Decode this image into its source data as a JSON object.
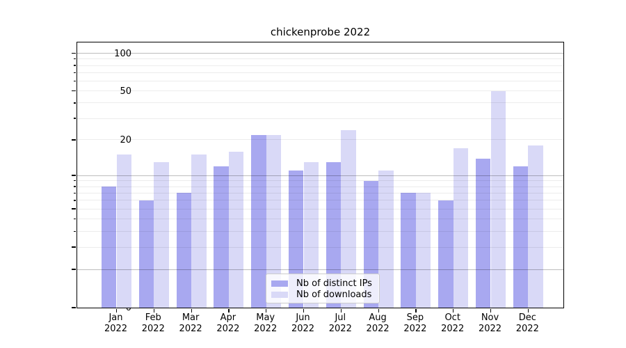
{
  "chart_data": {
    "type": "bar",
    "title": "chickenprobe 2022",
    "categories": [
      {
        "month": "Jan",
        "year": "2022"
      },
      {
        "month": "Feb",
        "year": "2022"
      },
      {
        "month": "Mar",
        "year": "2022"
      },
      {
        "month": "Apr",
        "year": "2022"
      },
      {
        "month": "May",
        "year": "2022"
      },
      {
        "month": "Jun",
        "year": "2022"
      },
      {
        "month": "Jul",
        "year": "2022"
      },
      {
        "month": "Aug",
        "year": "2022"
      },
      {
        "month": "Sep",
        "year": "2022"
      },
      {
        "month": "Oct",
        "year": "2022"
      },
      {
        "month": "Nov",
        "year": "2022"
      },
      {
        "month": "Dec",
        "year": "2022"
      }
    ],
    "series": [
      {
        "name": "Nb of distinct IPs",
        "color": "#a8a8f0",
        "values": [
          8,
          6,
          7,
          12,
          22,
          11,
          13,
          9,
          7,
          6,
          14,
          12
        ]
      },
      {
        "name": "Nb of downloads",
        "color": "#d9d9f7",
        "values": [
          15,
          13,
          15,
          16,
          22,
          13,
          24,
          11,
          7,
          17,
          50,
          18
        ]
      }
    ],
    "xlabel": "",
    "ylabel": "",
    "yscale": "log1p",
    "ylim": [
      0,
      125
    ],
    "yticks": [
      0,
      1,
      2,
      5,
      10,
      20,
      50,
      100
    ],
    "grid": {
      "major_lines": [
        1,
        10,
        100
      ],
      "minor_lines": [
        2,
        3,
        4,
        5,
        6,
        7,
        8,
        9,
        20,
        30,
        40,
        50,
        60,
        70,
        80,
        90
      ]
    },
    "legend_position": "lower center",
    "style": {
      "major_grid_color": "#c3c3c3",
      "minor_grid_color": "#ececec",
      "spine_color": "#000000",
      "background": "#ffffff"
    }
  }
}
